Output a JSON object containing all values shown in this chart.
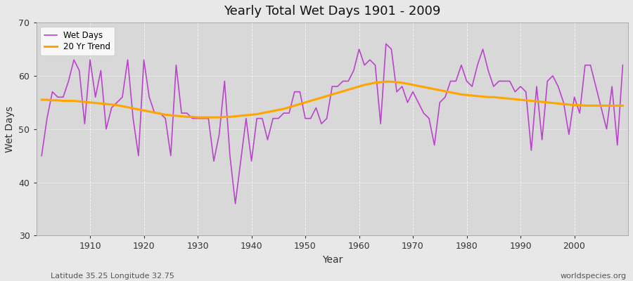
{
  "title": "Yearly Total Wet Days 1901 - 2009",
  "xlabel": "Year",
  "ylabel": "Wet Days",
  "subtitle": "Latitude 35.25 Longitude 32.75",
  "watermark": "worldspecies.org",
  "line_color": "#BB44CC",
  "trend_color": "#FFA500",
  "background_color": "#E8E8E8",
  "inner_bg_color": "#D8D8D8",
  "ylim": [
    30,
    70
  ],
  "yticks": [
    30,
    40,
    50,
    60,
    70
  ],
  "xticks": [
    1910,
    1920,
    1930,
    1940,
    1950,
    1960,
    1970,
    1980,
    1990,
    2000
  ],
  "years": [
    1901,
    1902,
    1903,
    1904,
    1905,
    1906,
    1907,
    1908,
    1909,
    1910,
    1911,
    1912,
    1913,
    1914,
    1915,
    1916,
    1917,
    1918,
    1919,
    1920,
    1921,
    1922,
    1923,
    1924,
    1925,
    1926,
    1927,
    1928,
    1929,
    1930,
    1931,
    1932,
    1933,
    1934,
    1935,
    1936,
    1937,
    1938,
    1939,
    1940,
    1941,
    1942,
    1943,
    1944,
    1945,
    1946,
    1947,
    1948,
    1949,
    1950,
    1951,
    1952,
    1953,
    1954,
    1955,
    1956,
    1957,
    1958,
    1959,
    1960,
    1961,
    1962,
    1963,
    1964,
    1965,
    1966,
    1967,
    1968,
    1969,
    1970,
    1971,
    1972,
    1973,
    1974,
    1975,
    1976,
    1977,
    1978,
    1979,
    1980,
    1981,
    1982,
    1983,
    1984,
    1985,
    1986,
    1987,
    1988,
    1989,
    1990,
    1991,
    1992,
    1993,
    1994,
    1995,
    1996,
    1997,
    1998,
    1999,
    2000,
    2001,
    2002,
    2003,
    2004,
    2005,
    2006,
    2007,
    2008,
    2009
  ],
  "wet_days": [
    45,
    52,
    57,
    56,
    56,
    59,
    63,
    61,
    51,
    63,
    56,
    61,
    50,
    54,
    55,
    56,
    63,
    52,
    45,
    63,
    56,
    53,
    53,
    52,
    45,
    62,
    53,
    53,
    52,
    52,
    52,
    52,
    44,
    49,
    59,
    45,
    36,
    44,
    52,
    44,
    52,
    52,
    48,
    52,
    52,
    53,
    53,
    57,
    57,
    52,
    52,
    54,
    51,
    52,
    58,
    58,
    59,
    59,
    61,
    65,
    62,
    63,
    62,
    51,
    66,
    65,
    57,
    58,
    55,
    57,
    55,
    53,
    52,
    47,
    55,
    56,
    59,
    59,
    62,
    59,
    58,
    62,
    65,
    61,
    58,
    59,
    59,
    59,
    57,
    58,
    57,
    46,
    58,
    48,
    59,
    60,
    58,
    55,
    49,
    56,
    53,
    62,
    62,
    58,
    54,
    50,
    58,
    47,
    62
  ],
  "trend": [
    55.5,
    55.5,
    55.4,
    55.4,
    55.3,
    55.3,
    55.3,
    55.2,
    55.1,
    55.0,
    54.9,
    54.8,
    54.7,
    54.6,
    54.5,
    54.3,
    54.1,
    53.9,
    53.7,
    53.5,
    53.3,
    53.1,
    52.9,
    52.7,
    52.6,
    52.5,
    52.4,
    52.3,
    52.3,
    52.2,
    52.2,
    52.2,
    52.2,
    52.2,
    52.3,
    52.3,
    52.4,
    52.5,
    52.6,
    52.7,
    52.8,
    53.0,
    53.2,
    53.4,
    53.6,
    53.8,
    54.1,
    54.4,
    54.7,
    55.0,
    55.3,
    55.6,
    55.9,
    56.2,
    56.5,
    56.8,
    57.1,
    57.4,
    57.7,
    58.0,
    58.3,
    58.5,
    58.7,
    58.8,
    58.9,
    58.9,
    58.8,
    58.7,
    58.5,
    58.3,
    58.1,
    57.9,
    57.7,
    57.5,
    57.3,
    57.1,
    56.9,
    56.7,
    56.5,
    56.4,
    56.3,
    56.2,
    56.1,
    56.0,
    56.0,
    55.9,
    55.8,
    55.7,
    55.6,
    55.5,
    55.4,
    55.3,
    55.2,
    55.1,
    55.0,
    54.9,
    54.8,
    54.7,
    54.6,
    54.5,
    54.5,
    54.4,
    54.4,
    54.4,
    54.4,
    54.4,
    54.4,
    54.4,
    54.4
  ]
}
